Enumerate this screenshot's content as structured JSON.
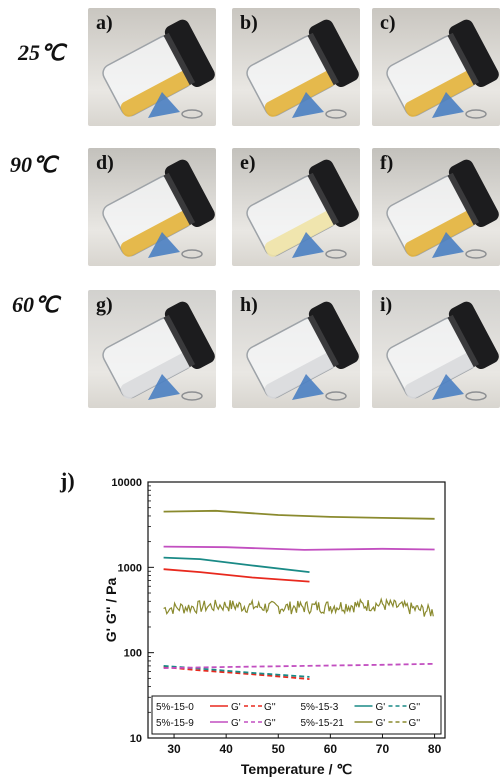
{
  "temperatures": [
    "25℃",
    "90℃",
    "60℃"
  ],
  "photos": [
    {
      "label": "a)",
      "gel": "yellow"
    },
    {
      "label": "b)",
      "gel": "yellow"
    },
    {
      "label": "c)",
      "gel": "yellow"
    },
    {
      "label": "d)",
      "gel": "yellow"
    },
    {
      "label": "e)",
      "gel": "liquid-yellow"
    },
    {
      "label": "f)",
      "gel": "yellow"
    },
    {
      "label": "g)",
      "gel": "clear"
    },
    {
      "label": "h)",
      "gel": "clear"
    },
    {
      "label": "i)",
      "gel": "clear"
    }
  ],
  "panel_label": "j)",
  "chart_data": {
    "type": "line",
    "xlabel": "Temperature / ℃",
    "ylabel": "G' G'' / Pa",
    "yscale": "log",
    "xlim": [
      25,
      82
    ],
    "ylim": [
      10,
      10000
    ],
    "xticks": [
      30,
      40,
      50,
      60,
      70,
      80
    ],
    "yticks": [
      "10",
      "100",
      "1000",
      "10000"
    ],
    "series": [
      {
        "sample": "5%-15-0",
        "modulus": "G'",
        "style": "solid",
        "color": "#e8291e",
        "x": [
          28,
          35,
          45,
          56
        ],
        "y": [
          950,
          880,
          760,
          680
        ]
      },
      {
        "sample": "5%-15-0",
        "modulus": "G''",
        "style": "dashed",
        "color": "#e8291e",
        "x": [
          28,
          35,
          45,
          56
        ],
        "y": [
          68,
          62,
          56,
          49
        ]
      },
      {
        "sample": "5%-15-3",
        "modulus": "G'",
        "style": "solid",
        "color": "#1a8a86",
        "x": [
          28,
          35,
          45,
          56
        ],
        "y": [
          1300,
          1250,
          1050,
          880
        ]
      },
      {
        "sample": "5%-15-3",
        "modulus": "G''",
        "style": "dashed",
        "color": "#1a8a86",
        "x": [
          28,
          35,
          45,
          56
        ],
        "y": [
          70,
          65,
          58,
          52
        ]
      },
      {
        "sample": "5%-15-9",
        "modulus": "G'",
        "style": "solid",
        "color": "#c24fc0",
        "x": [
          28,
          40,
          55,
          70,
          80
        ],
        "y": [
          1750,
          1720,
          1600,
          1650,
          1620
        ]
      },
      {
        "sample": "5%-15-9",
        "modulus": "G''",
        "style": "dashed",
        "color": "#c24fc0",
        "x": [
          28,
          40,
          55,
          70,
          80
        ],
        "y": [
          66,
          68,
          70,
          72,
          74
        ]
      },
      {
        "sample": "5%-15-21",
        "modulus": "G'",
        "style": "solid",
        "color": "#8a8a2e",
        "x": [
          28,
          38,
          50,
          60,
          70,
          80
        ],
        "y": [
          4500,
          4600,
          4100,
          3900,
          3800,
          3700
        ]
      },
      {
        "sample": "5%-15-21",
        "modulus": "G''",
        "style": "dashed",
        "color": "#8a8a2e",
        "x": [
          28,
          40,
          50,
          60,
          70,
          80
        ],
        "y": [
          330,
          360,
          340,
          350,
          370,
          300
        ]
      }
    ],
    "legend": [
      [
        "5%-15-0",
        "G'",
        "G''"
      ],
      [
        "5%-15-3",
        "G'",
        "G''"
      ],
      [
        "5%-15-9",
        "G'",
        "G''"
      ],
      [
        "5%-15-21",
        "G'",
        "G''"
      ]
    ]
  }
}
